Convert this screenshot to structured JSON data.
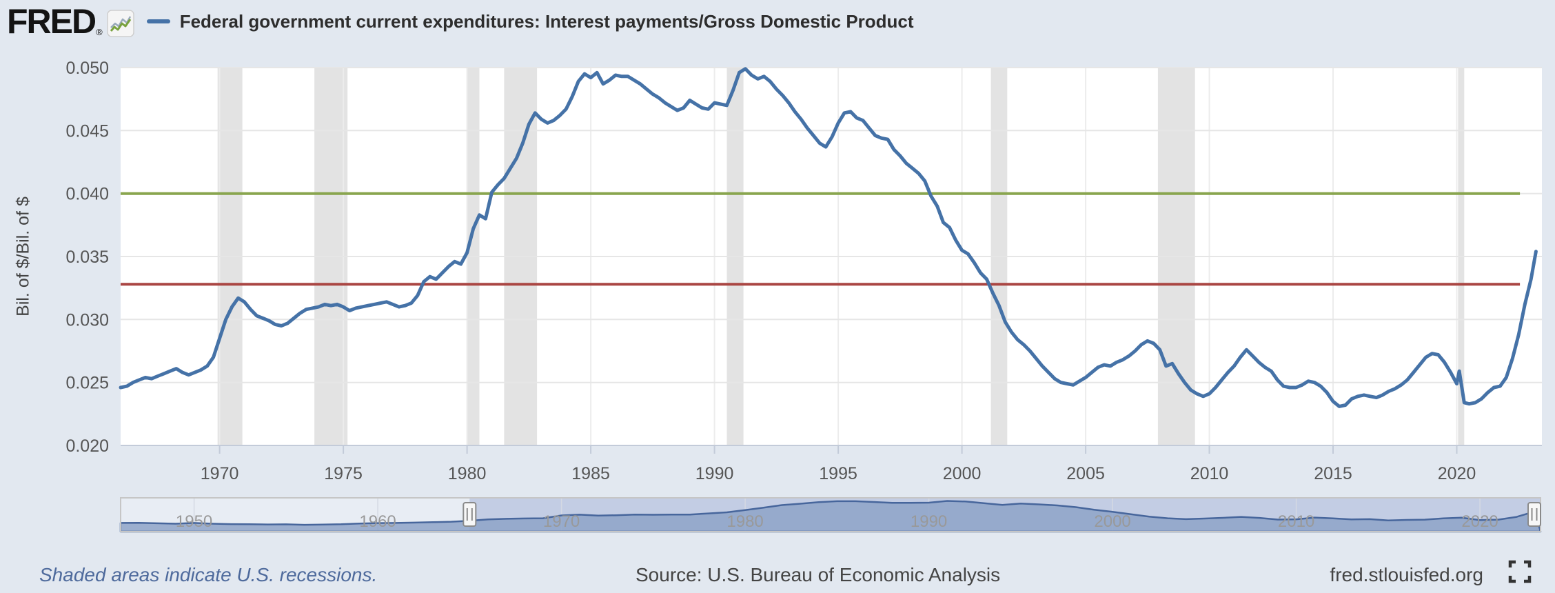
{
  "header": {
    "logo_text": "FRED",
    "logo_registered": "®",
    "series_title": "Federal government current expenditures: Interest payments/Gross Domestic Product"
  },
  "footer": {
    "recession_note": "Shaded areas indicate U.S. recessions.",
    "source_text": "Source: U.S. Bureau of Economic Analysis",
    "site_link": "fred.stlouisfed.org"
  },
  "colors": {
    "page_bg": "#e2e8f0",
    "plot_bg": "#ffffff",
    "series_line": "#4572a7",
    "green_line": "#89a54e",
    "red_line": "#aa4643",
    "recession_band": "#e3e3e3",
    "h_gridline": "#e6e6e6",
    "v_gridline": "#ececec",
    "axis_line": "#c3cbd9",
    "axis_text": "#555555",
    "title_text": "#2d2d2d",
    "selector_selected_bg": "#c3cde4",
    "selector_unselected_bg": "#e8edf4",
    "selector_area_fill": "#8ea3c8",
    "selector_area_line": "#47669c",
    "selector_border": "#c6c6c6",
    "handle_fill": "#f7f7f7",
    "handle_border": "#8a8a8a",
    "decade_label": "#999999"
  },
  "chart_data": {
    "type": "line",
    "title": "Federal government current expenditures: Interest payments/Gross Domestic Product",
    "xlabel": "",
    "ylabel": "Bil. of $/Bil. of $",
    "xlim": [
      1966.0,
      2023.3
    ],
    "ylim": [
      0.02,
      0.05
    ],
    "grid": true,
    "legend_position": "top-left",
    "x_tick_values": [
      1970,
      1975,
      1980,
      1985,
      1990,
      1995,
      2000,
      2005,
      2010,
      2015,
      2020
    ],
    "x_tick_labels": [
      "1970",
      "1975",
      "1980",
      "1985",
      "1990",
      "1995",
      "2000",
      "2005",
      "2010",
      "2015",
      "2020"
    ],
    "y_tick_values": [
      0.05,
      0.045,
      0.04,
      0.035,
      0.03,
      0.025,
      0.02
    ],
    "y_tick_labels": [
      "0.050",
      "0.045",
      "0.040",
      "0.035",
      "0.030",
      "0.025",
      "0.020"
    ],
    "recessions": [
      [
        1969.92,
        1970.92
      ],
      [
        1973.83,
        1975.17
      ],
      [
        1980.0,
        1980.5
      ],
      [
        1981.5,
        1982.83
      ],
      [
        1990.5,
        1991.17
      ],
      [
        2001.17,
        2001.83
      ],
      [
        2007.92,
        2009.42
      ],
      [
        2020.05,
        2020.3
      ]
    ],
    "reference_lines": [
      {
        "name": "green-horizontal-line",
        "value": 0.04,
        "color": "#89a54e",
        "x_start": 1966.0,
        "x_end": 2022.55
      },
      {
        "name": "red-horizontal-line",
        "value": 0.0328,
        "color": "#aa4643",
        "x_start": 1966.0,
        "x_end": 2022.55
      }
    ],
    "series": [
      {
        "name": "Federal government current expenditures: Interest payments/Gross Domestic Product",
        "color": "#4572a7",
        "x": [
          1966.0,
          1966.25,
          1966.5,
          1966.75,
          1967.0,
          1967.25,
          1967.5,
          1967.75,
          1968.0,
          1968.25,
          1968.5,
          1968.75,
          1969.0,
          1969.25,
          1969.5,
          1969.75,
          1970.0,
          1970.25,
          1970.5,
          1970.75,
          1971.0,
          1971.25,
          1971.5,
          1971.75,
          1972.0,
          1972.25,
          1972.5,
          1972.75,
          1973.0,
          1973.25,
          1973.5,
          1973.75,
          1974.0,
          1974.25,
          1974.5,
          1974.75,
          1975.0,
          1975.25,
          1975.5,
          1975.75,
          1976.0,
          1976.25,
          1976.5,
          1976.75,
          1977.0,
          1977.25,
          1977.5,
          1977.75,
          1978.0,
          1978.25,
          1978.5,
          1978.75,
          1979.0,
          1979.25,
          1979.5,
          1979.75,
          1980.0,
          1980.25,
          1980.5,
          1980.75,
          1981.0,
          1981.25,
          1981.5,
          1981.75,
          1982.0,
          1982.25,
          1982.5,
          1982.75,
          1983.0,
          1983.25,
          1983.5,
          1983.75,
          1984.0,
          1984.25,
          1984.5,
          1984.75,
          1985.0,
          1985.25,
          1985.5,
          1985.75,
          1986.0,
          1986.25,
          1986.5,
          1986.75,
          1987.0,
          1987.25,
          1987.5,
          1987.75,
          1988.0,
          1988.25,
          1988.5,
          1988.75,
          1989.0,
          1989.25,
          1989.5,
          1989.75,
          1990.0,
          1990.25,
          1990.5,
          1990.75,
          1991.0,
          1991.25,
          1991.5,
          1991.75,
          1992.0,
          1992.25,
          1992.5,
          1992.75,
          1993.0,
          1993.25,
          1993.5,
          1993.75,
          1994.0,
          1994.25,
          1994.5,
          1994.75,
          1995.0,
          1995.25,
          1995.5,
          1995.75,
          1996.0,
          1996.25,
          1996.5,
          1996.75,
          1997.0,
          1997.25,
          1997.5,
          1997.75,
          1998.0,
          1998.25,
          1998.5,
          1998.75,
          1999.0,
          1999.25,
          1999.5,
          1999.75,
          2000.0,
          2000.25,
          2000.5,
          2000.75,
          2001.0,
          2001.25,
          2001.5,
          2001.75,
          2002.0,
          2002.25,
          2002.5,
          2002.75,
          2003.0,
          2003.25,
          2003.5,
          2003.75,
          2004.0,
          2004.25,
          2004.5,
          2004.75,
          2005.0,
          2005.25,
          2005.5,
          2005.75,
          2006.0,
          2006.25,
          2006.5,
          2006.75,
          2007.0,
          2007.25,
          2007.5,
          2007.75,
          2008.0,
          2008.25,
          2008.5,
          2008.75,
          2009.0,
          2009.25,
          2009.5,
          2009.75,
          2010.0,
          2010.25,
          2010.5,
          2010.75,
          2011.0,
          2011.25,
          2011.5,
          2011.75,
          2012.0,
          2012.25,
          2012.5,
          2012.75,
          2013.0,
          2013.25,
          2013.5,
          2013.75,
          2014.0,
          2014.25,
          2014.5,
          2014.75,
          2015.0,
          2015.25,
          2015.5,
          2015.75,
          2016.0,
          2016.25,
          2016.5,
          2016.75,
          2017.0,
          2017.25,
          2017.5,
          2017.75,
          2018.0,
          2018.25,
          2018.5,
          2018.75,
          2019.0,
          2019.25,
          2019.5,
          2019.75,
          2020.0,
          2020.1,
          2020.3,
          2020.5,
          2020.75,
          2021.0,
          2021.25,
          2021.5,
          2021.75,
          2022.0,
          2022.25,
          2022.5,
          2022.75,
          2023.0,
          2023.2
        ],
        "y": [
          0.0246,
          0.0247,
          0.025,
          0.0252,
          0.0254,
          0.0253,
          0.0255,
          0.0257,
          0.0259,
          0.0261,
          0.0258,
          0.0256,
          0.0258,
          0.026,
          0.0263,
          0.027,
          0.0285,
          0.03,
          0.031,
          0.0317,
          0.0314,
          0.0308,
          0.0303,
          0.0301,
          0.0299,
          0.0296,
          0.0295,
          0.0297,
          0.0301,
          0.0305,
          0.0308,
          0.0309,
          0.031,
          0.0312,
          0.0311,
          0.0312,
          0.031,
          0.0307,
          0.0309,
          0.031,
          0.0311,
          0.0312,
          0.0313,
          0.0314,
          0.0312,
          0.031,
          0.0311,
          0.0313,
          0.0319,
          0.033,
          0.0334,
          0.0332,
          0.0337,
          0.0342,
          0.0346,
          0.0344,
          0.0353,
          0.0372,
          0.0383,
          0.038,
          0.0401,
          0.0407,
          0.0412,
          0.042,
          0.0428,
          0.044,
          0.0455,
          0.0464,
          0.0459,
          0.0456,
          0.0458,
          0.0462,
          0.0467,
          0.0477,
          0.0489,
          0.0495,
          0.0492,
          0.0496,
          0.0487,
          0.049,
          0.0494,
          0.0493,
          0.0493,
          0.049,
          0.0487,
          0.0483,
          0.0479,
          0.0476,
          0.0472,
          0.0469,
          0.0466,
          0.0468,
          0.0474,
          0.0471,
          0.0468,
          0.0467,
          0.0472,
          0.0471,
          0.047,
          0.0482,
          0.0496,
          0.0499,
          0.0494,
          0.0491,
          0.0493,
          0.0489,
          0.0483,
          0.0478,
          0.0472,
          0.0465,
          0.0459,
          0.0452,
          0.0446,
          0.044,
          0.0437,
          0.0445,
          0.0456,
          0.0464,
          0.0465,
          0.046,
          0.0458,
          0.0452,
          0.0446,
          0.0444,
          0.0443,
          0.0435,
          0.043,
          0.0424,
          0.042,
          0.0416,
          0.041,
          0.0398,
          0.039,
          0.0377,
          0.0373,
          0.0363,
          0.0355,
          0.0352,
          0.0345,
          0.0337,
          0.0332,
          0.0321,
          0.0311,
          0.0298,
          0.029,
          0.0284,
          0.028,
          0.0275,
          0.0269,
          0.0263,
          0.0258,
          0.0253,
          0.025,
          0.0249,
          0.0248,
          0.0251,
          0.0254,
          0.0258,
          0.0262,
          0.0264,
          0.0263,
          0.0266,
          0.0268,
          0.0271,
          0.0275,
          0.028,
          0.0283,
          0.0281,
          0.0276,
          0.0263,
          0.0265,
          0.0257,
          0.025,
          0.0244,
          0.0241,
          0.0239,
          0.0241,
          0.0246,
          0.0252,
          0.0258,
          0.0263,
          0.027,
          0.0276,
          0.0271,
          0.0266,
          0.0262,
          0.0259,
          0.0252,
          0.0247,
          0.0246,
          0.0246,
          0.0248,
          0.0251,
          0.025,
          0.0247,
          0.0242,
          0.0235,
          0.0231,
          0.0232,
          0.0237,
          0.0239,
          0.024,
          0.0239,
          0.0238,
          0.024,
          0.0243,
          0.0245,
          0.0248,
          0.0252,
          0.0258,
          0.0264,
          0.027,
          0.0273,
          0.0272,
          0.0266,
          0.0258,
          0.0249,
          0.0259,
          0.0234,
          0.0233,
          0.0234,
          0.0237,
          0.0242,
          0.0246,
          0.0247,
          0.0254,
          0.0269,
          0.0288,
          0.0312,
          0.0332,
          0.0354
        ]
      }
    ]
  },
  "range_selector": {
    "domain": [
      1946.0,
      2023.3
    ],
    "selection": [
      1965.0,
      2023.3
    ],
    "value_range": [
      0.008,
      0.052
    ],
    "decade_tick_values": [
      1950,
      1960,
      1970,
      1980,
      1990,
      2000,
      2010,
      2020
    ],
    "decade_labels": [
      "1950",
      "1960",
      "1970",
      "1980",
      "1990",
      "2000",
      "2010",
      "2020"
    ],
    "x": [
      1946,
      1947,
      1948,
      1949,
      1950,
      1951,
      1952,
      1953,
      1954,
      1955,
      1956,
      1957,
      1958,
      1959,
      1960,
      1961,
      1962,
      1963,
      1964,
      1965,
      1966,
      1967,
      1968,
      1969,
      1970,
      1971,
      1972,
      1973,
      1974,
      1975,
      1976,
      1977,
      1978,
      1979,
      1980,
      1981,
      1982,
      1983,
      1984,
      1985,
      1986,
      1987,
      1988,
      1989,
      1990,
      1991,
      1992,
      1993,
      1994,
      1995,
      1996,
      1997,
      1998,
      1999,
      2000,
      2001,
      2002,
      2003,
      2004,
      2005,
      2006,
      2007,
      2008,
      2009,
      2010,
      2011,
      2012,
      2013,
      2014,
      2015,
      2016,
      2017,
      2018,
      2019,
      2020,
      2021,
      2022,
      2023
    ],
    "y": [
      0.0198,
      0.02,
      0.0193,
      0.0188,
      0.0198,
      0.0188,
      0.0182,
      0.018,
      0.0177,
      0.0179,
      0.0173,
      0.0176,
      0.018,
      0.019,
      0.0196,
      0.0198,
      0.0203,
      0.0208,
      0.0215,
      0.0228,
      0.0246,
      0.0254,
      0.0259,
      0.0262,
      0.03,
      0.031,
      0.0297,
      0.0303,
      0.0311,
      0.0309,
      0.0312,
      0.0312,
      0.0327,
      0.0342,
      0.0372,
      0.0405,
      0.044,
      0.0459,
      0.048,
      0.0493,
      0.0493,
      0.0483,
      0.047,
      0.0471,
      0.0473,
      0.0497,
      0.0489,
      0.0466,
      0.0443,
      0.0461,
      0.045,
      0.0436,
      0.0412,
      0.0378,
      0.035,
      0.0317,
      0.0283,
      0.0262,
      0.0249,
      0.0258,
      0.0267,
      0.028,
      0.0266,
      0.0244,
      0.0248,
      0.0271,
      0.0261,
      0.0247,
      0.0249,
      0.0233,
      0.0239,
      0.0243,
      0.0261,
      0.0269,
      0.0237,
      0.0243,
      0.028,
      0.0354
    ]
  }
}
